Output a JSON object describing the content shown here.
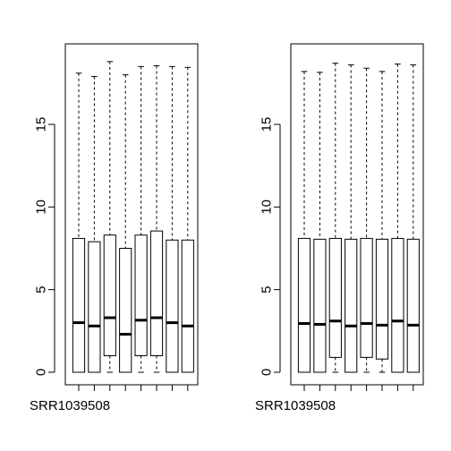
{
  "chart_data": [
    {
      "type": "boxplot",
      "ylim": [
        0,
        19
      ],
      "yticks": [
        0,
        5,
        10,
        15
      ],
      "xtick_label": "SRR1039508",
      "series": [
        {
          "min": 0,
          "q1": 0,
          "median": 3.0,
          "q3": 8.1,
          "max": 18.1
        },
        {
          "min": 0,
          "q1": 0,
          "median": 2.8,
          "q3": 7.9,
          "max": 17.9
        },
        {
          "min": 0,
          "q1": 1.0,
          "median": 3.3,
          "q3": 8.3,
          "max": 18.8
        },
        {
          "min": 0,
          "q1": 0,
          "median": 2.3,
          "q3": 7.5,
          "max": 18.0
        },
        {
          "min": 0,
          "q1": 1.0,
          "median": 3.15,
          "q3": 8.3,
          "max": 18.5
        },
        {
          "min": 0,
          "q1": 1.0,
          "median": 3.3,
          "q3": 8.55,
          "max": 18.55
        },
        {
          "min": 0,
          "q1": 0,
          "median": 3.0,
          "q3": 8.0,
          "max": 18.5
        },
        {
          "min": 0,
          "q1": 0,
          "median": 2.8,
          "q3": 8.0,
          "max": 18.45
        }
      ]
    },
    {
      "type": "boxplot",
      "ylim": [
        0,
        19
      ],
      "yticks": [
        0,
        5,
        10,
        15
      ],
      "xtick_label": "SRR1039508",
      "series": [
        {
          "min": 0,
          "q1": 0,
          "median": 2.95,
          "q3": 8.1,
          "max": 18.2
        },
        {
          "min": 0,
          "q1": 0,
          "median": 2.9,
          "q3": 8.05,
          "max": 18.15
        },
        {
          "min": 0,
          "q1": 0.9,
          "median": 3.1,
          "q3": 8.1,
          "max": 18.7
        },
        {
          "min": 0,
          "q1": 0,
          "median": 2.8,
          "q3": 8.05,
          "max": 18.6
        },
        {
          "min": 0,
          "q1": 0.9,
          "median": 2.95,
          "q3": 8.1,
          "max": 18.4
        },
        {
          "min": 0,
          "q1": 0.8,
          "median": 2.85,
          "q3": 8.05,
          "max": 18.2
        },
        {
          "min": 0,
          "q1": 0,
          "median": 3.1,
          "q3": 8.1,
          "max": 18.65
        },
        {
          "min": 0,
          "q1": 0,
          "median": 2.85,
          "q3": 8.05,
          "max": 18.6
        }
      ]
    }
  ]
}
